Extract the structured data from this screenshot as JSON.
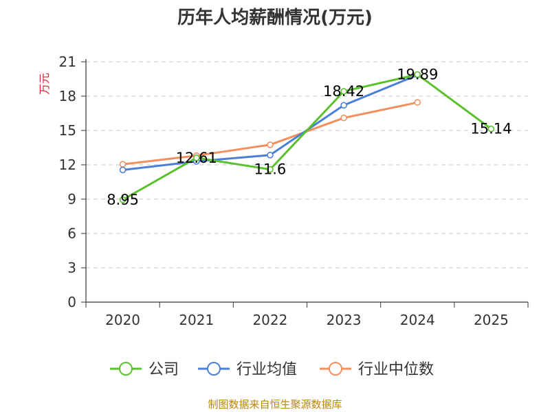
{
  "chart_data": {
    "type": "line",
    "title": "历年人均薪酬情况(万元)",
    "ylabel": "万元",
    "xlabel": "",
    "categories": [
      "2020",
      "2021",
      "2022",
      "2023",
      "2024",
      "2025"
    ],
    "ylim": [
      0,
      21
    ],
    "yticks": [
      0,
      3,
      6,
      9,
      12,
      15,
      18,
      21
    ],
    "grid": true,
    "legend_position": "bottom",
    "series": [
      {
        "name": "公司",
        "color": "#5ac12d",
        "values": [
          8.95,
          12.61,
          11.6,
          18.42,
          19.89,
          15.14
        ],
        "labels": [
          "8.95",
          "12.61",
          "11.6",
          "18.42",
          "19.89",
          "15.14"
        ]
      },
      {
        "name": "行业均值",
        "color": "#4a7fd8",
        "values": [
          11.55,
          12.3,
          12.85,
          17.2,
          19.85,
          null
        ]
      },
      {
        "name": "行业中位数",
        "color": "#f28f5c",
        "values": [
          12.05,
          12.8,
          13.75,
          16.1,
          17.45,
          null
        ]
      }
    ],
    "source": "制图数据来自恒生聚源数据库"
  }
}
